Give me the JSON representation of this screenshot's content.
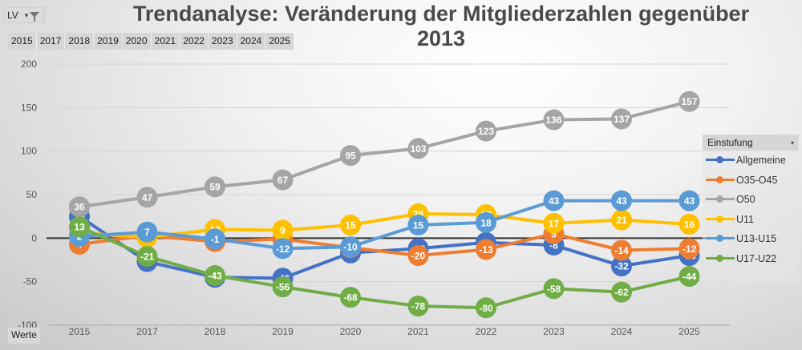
{
  "filter": {
    "label": "LV",
    "caret": "▾"
  },
  "year_slicer": [
    "2015",
    "2017",
    "2018",
    "2019",
    "2020",
    "2021",
    "2022",
    "2023",
    "2024",
    "2025"
  ],
  "values_button": "Werte",
  "legend": {
    "title": "Einstufung",
    "dropdown": "▾"
  },
  "chart_data": {
    "type": "line",
    "title": "Trendanalyse: Veränderung der Mitgliederzahlen gegenüber 2013",
    "xlabel": "",
    "ylabel": "",
    "x": [
      "2015",
      "2017",
      "2018",
      "2019",
      "2020",
      "2021",
      "2022",
      "2023",
      "2024",
      "2025"
    ],
    "ylim": [
      -100,
      200
    ],
    "yticks": [
      200,
      150,
      100,
      50,
      0,
      -50,
      -100
    ],
    "grid": true,
    "legend_position": "right",
    "series": [
      {
        "name": "Allgemeine",
        "color": "#4472C4",
        "values": [
          25,
          -27,
          -45,
          -46,
          -17,
          -12,
          -5,
          -8,
          -32,
          -20
        ]
      },
      {
        "name": "O35-O45",
        "color": "#ED7D31",
        "values": [
          -7,
          3,
          -4,
          -1,
          -11,
          -20,
          -13,
          5,
          -14,
          -12
        ]
      },
      {
        "name": "O50",
        "color": "#A5A5A5",
        "values": [
          36,
          47,
          59,
          67,
          95,
          103,
          123,
          136,
          137,
          157
        ]
      },
      {
        "name": "U11",
        "color": "#FFC000",
        "values": [
          6,
          1,
          10,
          9,
          15,
          28,
          27,
          17,
          21,
          16
        ]
      },
      {
        "name": "U13-U15",
        "color": "#5B9BD5",
        "values": [
          2,
          7,
          -1,
          -12,
          -10,
          15,
          18,
          43,
          43,
          43
        ]
      },
      {
        "name": "U17-U22",
        "color": "#70AD47",
        "values": [
          13,
          -21,
          -43,
          -56,
          -68,
          -78,
          -80,
          -58,
          -62,
          -44
        ]
      }
    ]
  }
}
